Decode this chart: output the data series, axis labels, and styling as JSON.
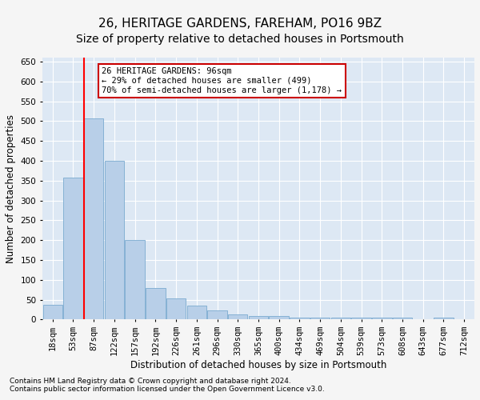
{
  "title": "26, HERITAGE GARDENS, FAREHAM, PO16 9BZ",
  "subtitle": "Size of property relative to detached houses in Portsmouth",
  "xlabel": "Distribution of detached houses by size in Portsmouth",
  "ylabel": "Number of detached properties",
  "categories": [
    "18sqm",
    "53sqm",
    "87sqm",
    "122sqm",
    "157sqm",
    "192sqm",
    "226sqm",
    "261sqm",
    "296sqm",
    "330sqm",
    "365sqm",
    "400sqm",
    "434sqm",
    "469sqm",
    "504sqm",
    "539sqm",
    "573sqm",
    "608sqm",
    "643sqm",
    "677sqm",
    "712sqm"
  ],
  "values": [
    38,
    357,
    507,
    400,
    200,
    80,
    53,
    35,
    22,
    12,
    9,
    9,
    5,
    5,
    5,
    5,
    5,
    5,
    0,
    5,
    0
  ],
  "bar_color": "#b8cfe8",
  "bar_edge_color": "#7aaad0",
  "red_line_index": 2,
  "annotation_text": "26 HERITAGE GARDENS: 96sqm\n← 29% of detached houses are smaller (499)\n70% of semi-detached houses are larger (1,178) →",
  "annotation_box_color": "#ffffff",
  "annotation_box_edge_color": "#cc0000",
  "footnote1": "Contains HM Land Registry data © Crown copyright and database right 2024.",
  "footnote2": "Contains public sector information licensed under the Open Government Licence v3.0.",
  "ylim": [
    0,
    660
  ],
  "yticks": [
    0,
    50,
    100,
    150,
    200,
    250,
    300,
    350,
    400,
    450,
    500,
    550,
    600,
    650
  ],
  "background_color": "#dde8f4",
  "grid_color": "#ffffff",
  "fig_bg_color": "#f5f5f5",
  "title_fontsize": 11,
  "subtitle_fontsize": 10,
  "axis_label_fontsize": 8.5,
  "tick_fontsize": 7.5,
  "annotation_fontsize": 7.5,
  "footnote_fontsize": 6.5
}
